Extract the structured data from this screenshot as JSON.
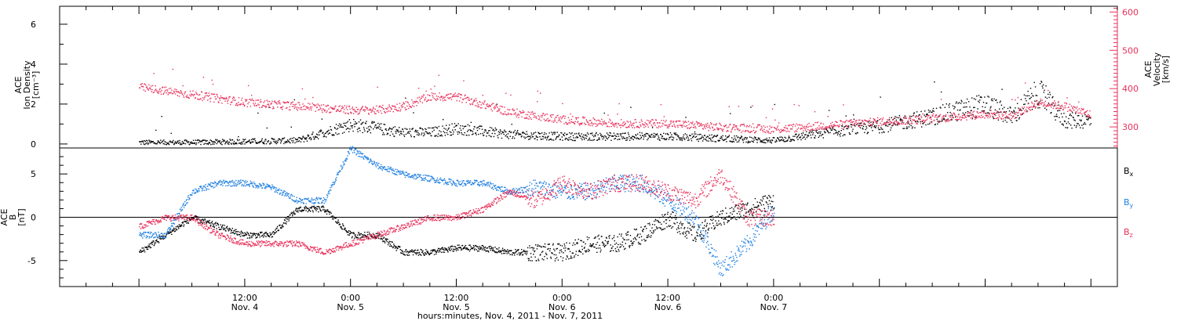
{
  "colors": {
    "black": "#000000",
    "pink": "#e8305a",
    "blue": "#1f7fe0",
    "frame": "#000000"
  },
  "chart_data": [
    {
      "type": "scatter",
      "ylabel_lines": [
        "ACE",
        "Ion Density",
        "[cm⁻³]"
      ],
      "ylim": [
        -0.2,
        6.9
      ],
      "yticks": [
        0,
        2,
        4,
        6
      ],
      "yticks_minor": [
        1,
        3,
        5
      ],
      "y2label_lines": [
        "ACE",
        "Velocity",
        "[km/s]"
      ],
      "y2lim": [
        245,
        615
      ],
      "y2ticks": [
        300,
        400,
        500,
        600
      ],
      "xlim": [
        -9,
        111
      ],
      "series": [
        {
          "axis": "left",
          "color": "#000000",
          "x": [
            0,
            6,
            12,
            18,
            24,
            30,
            33,
            36,
            42,
            48,
            54,
            60,
            66,
            72,
            78,
            84,
            90,
            96,
            99,
            102,
            105,
            108
          ],
          "y": [
            0.1,
            0.1,
            0.15,
            0.2,
            1.0,
            0.6,
            0.6,
            0.8,
            0.5,
            0.4,
            0.4,
            0.4,
            0.3,
            0.2,
            0.6,
            0.9,
            1.4,
            2.0,
            1.4,
            2.6,
            1.2,
            1.2
          ]
        },
        {
          "axis": "right",
          "color": "#e8305a",
          "x": [
            0,
            6,
            12,
            18,
            24,
            27,
            30,
            33,
            36,
            42,
            48,
            54,
            60,
            66,
            72,
            78,
            84,
            90,
            96,
            99,
            102,
            105,
            108
          ],
          "y": [
            405,
            385,
            365,
            355,
            345,
            345,
            355,
            380,
            380,
            340,
            320,
            310,
            310,
            300,
            295,
            305,
            315,
            322,
            335,
            330,
            365,
            355,
            333
          ]
        }
      ],
      "marker": "dots"
    },
    {
      "type": "scatter",
      "ylabel_lines": [
        "ACE",
        "B",
        "[nT]"
      ],
      "ylim": [
        -8,
        8
      ],
      "yticks": [
        -5,
        0,
        5
      ],
      "zero_line": true,
      "xlim": [
        -9,
        111
      ],
      "xticks": [
        {
          "x": 12,
          "label": "12:00",
          "sublabel": "Nov. 4"
        },
        {
          "x": 24,
          "label": "0:00",
          "sublabel": "Nov. 5"
        },
        {
          "x": 36,
          "label": "12:00",
          "sublabel": "Nov. 5"
        },
        {
          "x": 48,
          "label": "0:00",
          "sublabel": "Nov. 6"
        },
        {
          "x": 60,
          "label": "12:00",
          "sublabel": "Nov. 6"
        },
        {
          "x": 72,
          "label": "0:00",
          "sublabel": "Nov. 7"
        }
      ],
      "xlabel": "hours:minutes, Nov.  4, 2011 - Nov.  7, 2011",
      "series": [
        {
          "name": "Bx",
          "name_main": "B",
          "name_sub": "x",
          "color": "#000000",
          "x": [
            0,
            3,
            6,
            9,
            12,
            15,
            18,
            21,
            24,
            27,
            30,
            33,
            36,
            39,
            42,
            45,
            48,
            51,
            54,
            57,
            60,
            63,
            66,
            69,
            72
          ],
          "y": [
            -4,
            -2,
            0,
            -1,
            -2,
            -2,
            1,
            1,
            -2,
            -2,
            -4,
            -4,
            -3.5,
            -3.5,
            -4,
            -4,
            -4,
            -3,
            -3,
            -2,
            0,
            -2,
            0,
            1,
            2
          ]
        },
        {
          "name": "By",
          "name_main": "B",
          "name_sub": "y",
          "color": "#1f7fe0",
          "x": [
            0,
            3,
            6,
            9,
            12,
            15,
            18,
            21,
            24,
            27,
            30,
            33,
            36,
            39,
            42,
            45,
            48,
            51,
            54,
            57,
            60,
            63,
            66,
            69,
            72
          ],
          "y": [
            -2,
            -2,
            3,
            4,
            4,
            3.5,
            2,
            2,
            8,
            6,
            5,
            4.5,
            4,
            4,
            3,
            3.5,
            3,
            3,
            4,
            4,
            2,
            0,
            -6,
            -3,
            1
          ]
        },
        {
          "name": "Bz",
          "name_main": "B",
          "name_sub": "z",
          "color": "#e8305a",
          "x": [
            0,
            3,
            6,
            9,
            12,
            15,
            18,
            21,
            24,
            27,
            30,
            33,
            36,
            39,
            42,
            45,
            48,
            51,
            54,
            57,
            60,
            63,
            66,
            69,
            72
          ],
          "y": [
            -1,
            0,
            0,
            -2,
            -3,
            -3,
            -3,
            -4,
            -3,
            -2,
            -1,
            0,
            0,
            1,
            3,
            2,
            4,
            3,
            4,
            4,
            3,
            2,
            5,
            0,
            0
          ]
        }
      ],
      "marker": "dots"
    }
  ]
}
